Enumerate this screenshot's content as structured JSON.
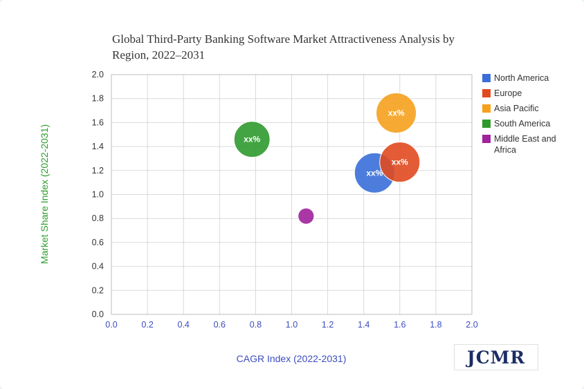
{
  "colors": {
    "north_america": "#3a6fd8",
    "europe": "#e04a1f",
    "asia_pacific": "#f5a11e",
    "south_america": "#2e9a2e",
    "mea": "#a0229c",
    "x_axis_text": "#3b4cc0",
    "y_axis_text": "#2e9c2e"
  },
  "chart_data": {
    "type": "scatter",
    "subtype": "bubble",
    "title": "Global Third-Party Banking Software Market Attractiveness Analysis by Region, 2022–2031",
    "xlabel": "CAGR Index (2022-2031)",
    "ylabel": "Market Share Index (2022-2031)",
    "xlim": [
      0,
      2.0
    ],
    "ylim": [
      0,
      2.0
    ],
    "x_ticks": [
      "0.0",
      "0.2",
      "0.4",
      "0.6",
      "0.8",
      "1.0",
      "1.2",
      "1.4",
      "1.6",
      "1.8",
      "2.0"
    ],
    "y_ticks": [
      "0.0",
      "0.2",
      "0.4",
      "0.6",
      "0.8",
      "1.0",
      "1.2",
      "1.4",
      "1.6",
      "1.8",
      "2.0"
    ],
    "grid": true,
    "legend_position": "right",
    "series": [
      {
        "name": "North America",
        "x": 1.46,
        "y": 1.18,
        "size": 1.0,
        "label": "xx%",
        "color": "#3a6fd8"
      },
      {
        "name": "Europe",
        "x": 1.6,
        "y": 1.27,
        "size": 1.0,
        "label": "xx%",
        "color": "#e04a1f"
      },
      {
        "name": "Asia Pacific",
        "x": 1.58,
        "y": 1.68,
        "size": 1.0,
        "label": "xx%",
        "color": "#f5a11e"
      },
      {
        "name": "South America",
        "x": 0.78,
        "y": 1.46,
        "size": 0.8,
        "label": "xx%",
        "color": "#2e9a2e"
      },
      {
        "name": "Middle East and Africa",
        "x": 1.08,
        "y": 0.82,
        "size": 0.16,
        "label": "",
        "color": "#a0229c"
      }
    ]
  },
  "logo": {
    "text": "JCMR"
  }
}
